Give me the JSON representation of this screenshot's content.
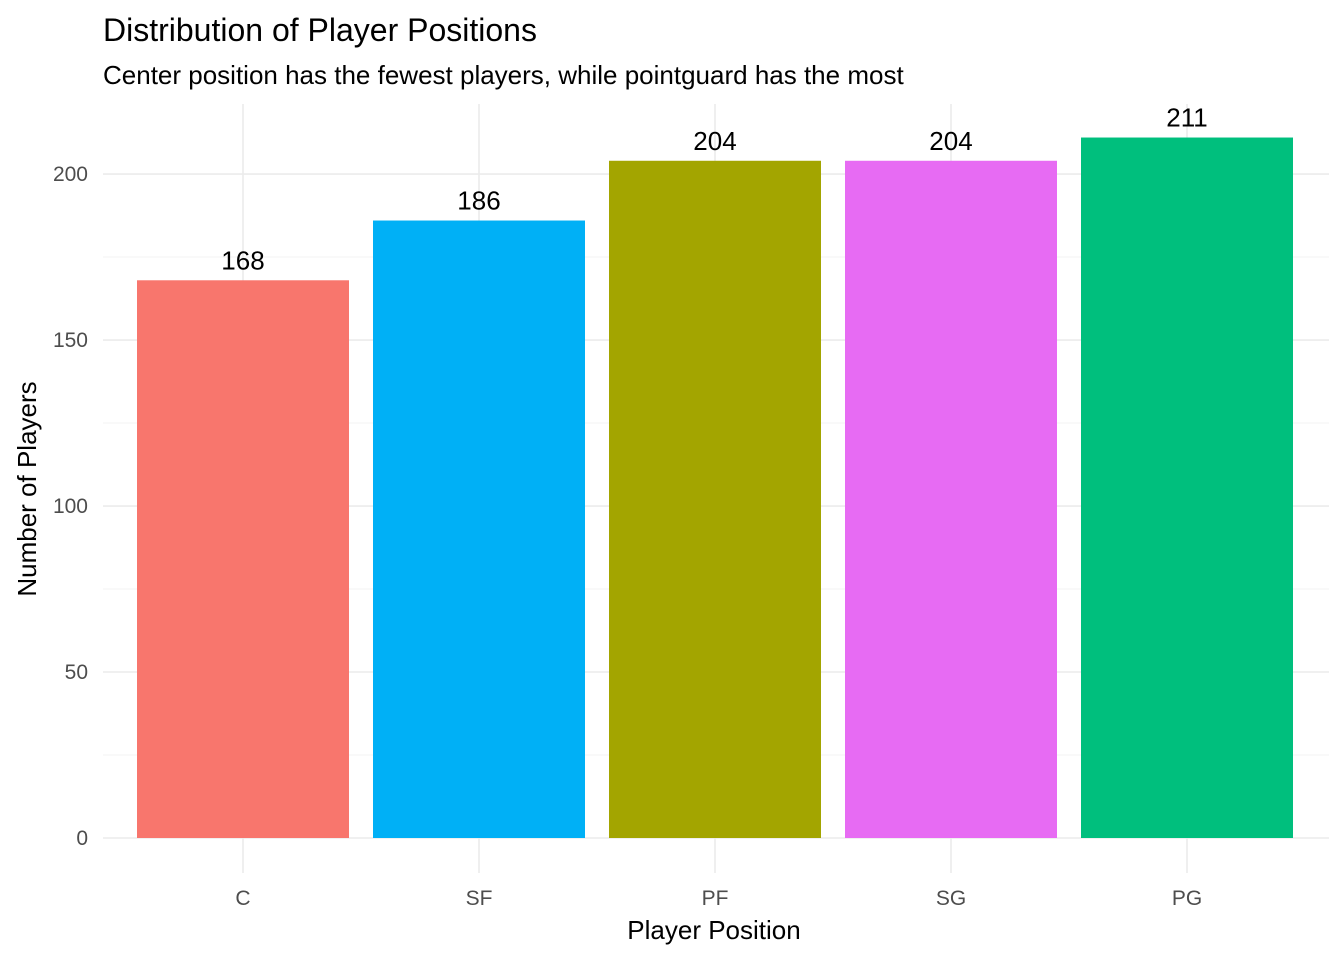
{
  "chart_data": {
    "type": "bar",
    "title": "Distribution of Player Positions",
    "subtitle": "Center position has the fewest players, while pointguard has the most",
    "xlabel": "Player Position",
    "ylabel": "Number of Players",
    "categories": [
      "C",
      "SF",
      "PF",
      "SG",
      "PG"
    ],
    "values": [
      168,
      186,
      204,
      204,
      211
    ],
    "value_labels": [
      "168",
      "186",
      "204",
      "204",
      "211"
    ],
    "colors": [
      "#F8766D",
      "#00B0F6",
      "#A3A500",
      "#E76BF3",
      "#00BF7D"
    ],
    "ylim": [
      0,
      221
    ],
    "yticks": [
      0,
      50,
      100,
      150,
      200
    ],
    "ytick_labels": [
      "0",
      "50",
      "100",
      "150",
      "200"
    ],
    "grid": true,
    "legend": "none"
  }
}
